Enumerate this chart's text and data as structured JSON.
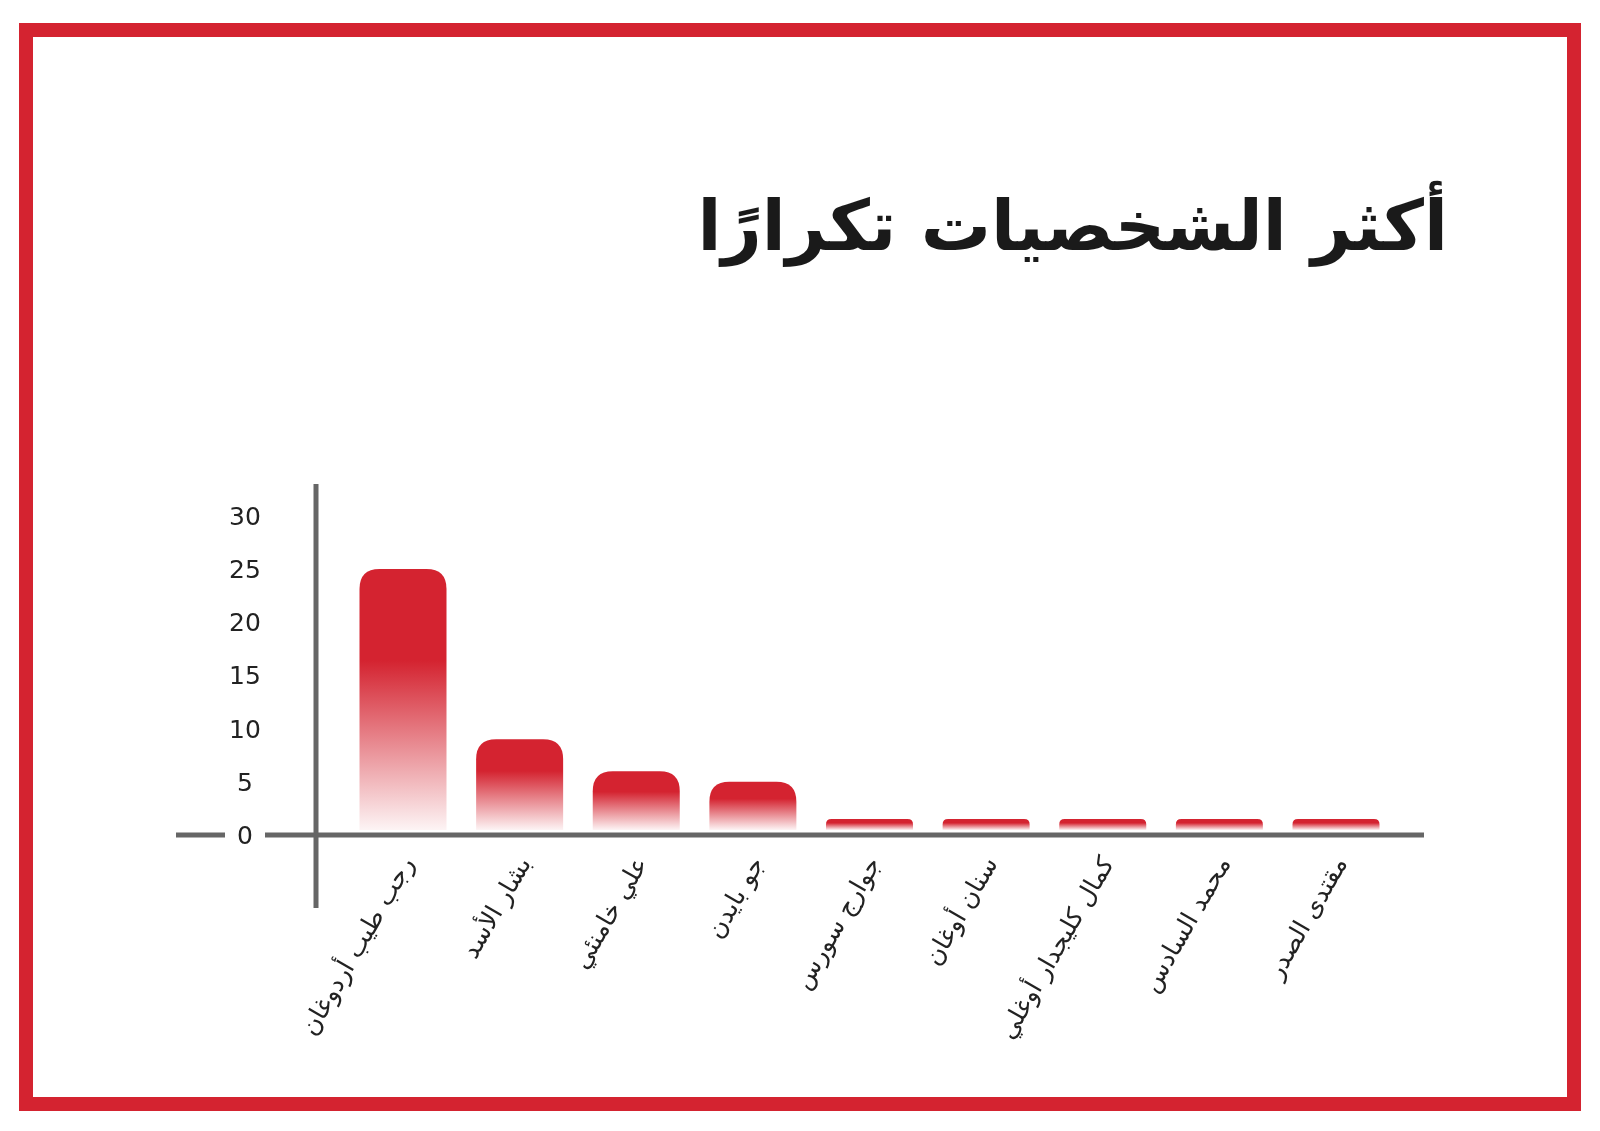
{
  "chart_data": {
    "type": "bar",
    "title": "أكثر الشخصيات تكرارًا",
    "categories": [
      "رجب طيب أردوغان",
      "بشار الأسد",
      "علي خامنئي",
      "جو بايدن",
      "جوارج سورس",
      "سنان أوغان",
      "كمال كليجدار أوغلي",
      "محمد السادس",
      "مقتدى الصدر"
    ],
    "values": [
      25,
      9,
      6,
      5,
      1.5,
      1.5,
      1.5,
      1.5,
      1.5
    ],
    "color": "#d42330",
    "ylim": [
      0,
      33
    ],
    "yticks": [
      0,
      5,
      10,
      15,
      20,
      25,
      30
    ],
    "grid": false
  }
}
